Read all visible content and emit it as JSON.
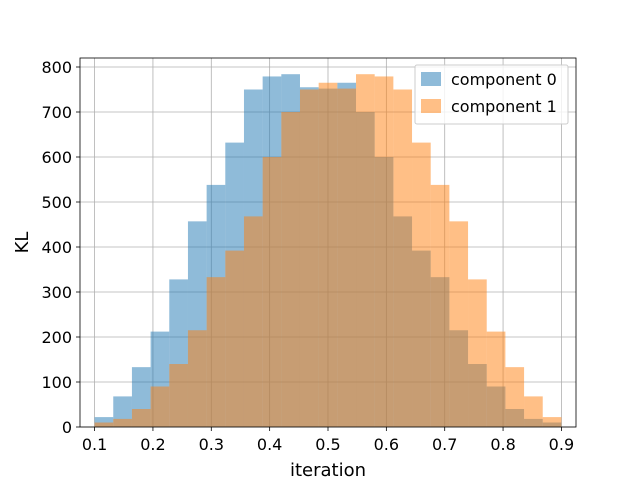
{
  "chart_data": {
    "type": "bar",
    "subtype": "histogram-overlay",
    "title": "",
    "xlabel": "iteration",
    "ylabel": "KL",
    "xlim": [
      0.075,
      0.925
    ],
    "ylim": [
      0,
      820
    ],
    "xticks": [
      0.1,
      0.2,
      0.3,
      0.4,
      0.5,
      0.6,
      0.7,
      0.8,
      0.9
    ],
    "yticks": [
      0,
      100,
      200,
      300,
      400,
      500,
      600,
      700,
      800
    ],
    "grid": true,
    "legend_position": "top-right",
    "bin_edges": [
      0.1,
      0.132,
      0.164,
      0.196,
      0.228,
      0.26,
      0.292,
      0.324,
      0.356,
      0.388,
      0.42,
      0.452,
      0.484,
      0.516,
      0.548,
      0.58,
      0.612,
      0.644,
      0.676,
      0.708,
      0.74,
      0.772,
      0.804,
      0.836,
      0.868,
      0.9
    ],
    "series": [
      {
        "name": "component 0",
        "color": "#1f77b4",
        "alpha": 0.5,
        "values": [
          22,
          68,
          133,
          212,
          328,
          457,
          538,
          632,
          750,
          779,
          784,
          755,
          752,
          765,
          700,
          600,
          468,
          392,
          333,
          215,
          140,
          90,
          40,
          18,
          10
        ]
      },
      {
        "name": "component 1",
        "color": "#ff7f0e",
        "alpha": 0.5,
        "values": [
          10,
          18,
          40,
          90,
          140,
          215,
          333,
          392,
          468,
          600,
          700,
          750,
          765,
          752,
          784,
          779,
          750,
          632,
          538,
          457,
          328,
          212,
          133,
          68,
          22
        ]
      }
    ]
  }
}
